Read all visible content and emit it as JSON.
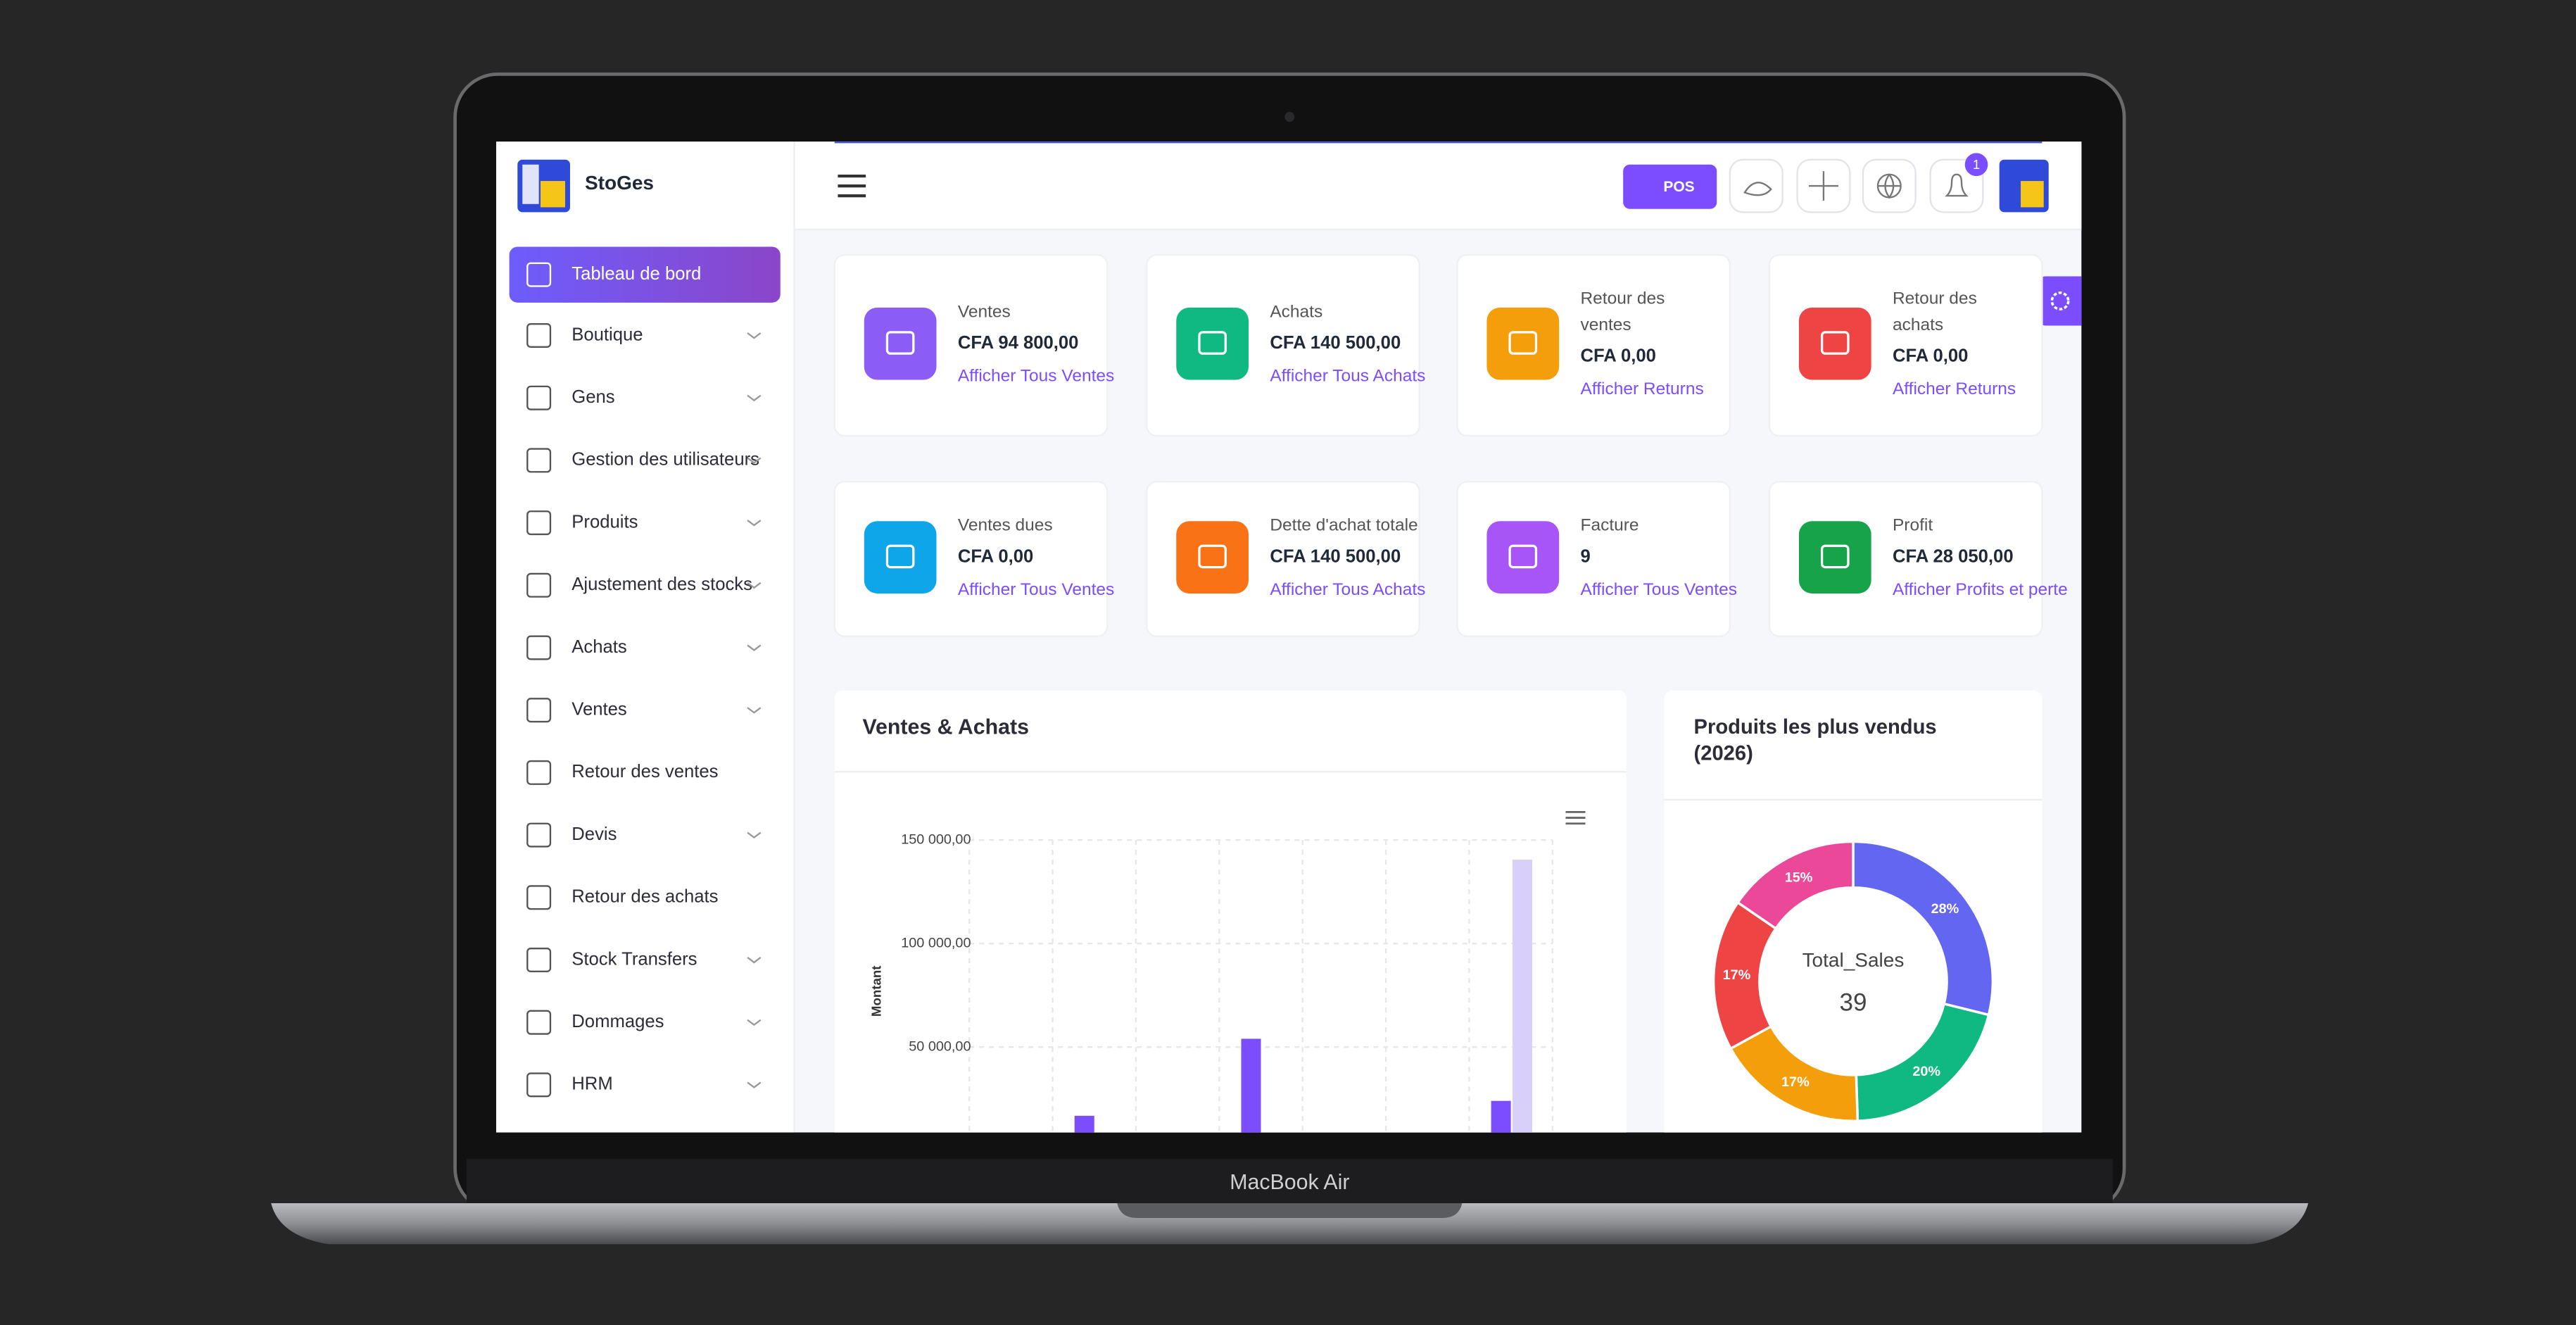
{
  "device_label": "MacBook Air",
  "sidebar": {
    "brand": "StoGes",
    "items": [
      {
        "label": "Tableau de bord",
        "active": true
      },
      {
        "label": "Boutique",
        "submenu": true
      },
      {
        "label": "Gens",
        "submenu": true
      },
      {
        "label": "Gestion des utilisateurs",
        "submenu": true
      },
      {
        "label": "Produits",
        "submenu": true
      },
      {
        "label": "Ajustement des stocks",
        "submenu": true
      },
      {
        "label": "Achats",
        "submenu": true
      },
      {
        "label": "Ventes",
        "submenu": true
      },
      {
        "label": "Retour des ventes"
      },
      {
        "label": "Devis",
        "submenu": true
      },
      {
        "label": "Retour des achats"
      },
      {
        "label": "Stock Transfers",
        "submenu": true
      },
      {
        "label": "Dommages",
        "submenu": true
      },
      {
        "label": "HRM",
        "submenu": true
      }
    ]
  },
  "header": {
    "pos_button": "POS",
    "notification_count": 1
  },
  "cards": [
    {
      "label": [
        "Ventes"
      ],
      "value": "CFA 94 800,00",
      "link": "Afficher Tous Ventes",
      "color": "#8b5cf6"
    },
    {
      "label": [
        "Achats"
      ],
      "value": "CFA 140 500,00",
      "link": "Afficher Tous Achats",
      "color": "#10b981"
    },
    {
      "label": [
        "Retour des",
        "ventes"
      ],
      "value": "CFA 0,00",
      "link": "Afficher Returns",
      "color": "#f59e0b"
    },
    {
      "label": [
        "Retour des",
        "achats"
      ],
      "value": "CFA 0,00",
      "link": "Afficher Returns",
      "color": "#ef4444"
    },
    {
      "label": [
        "Ventes dues"
      ],
      "value": "CFA 0,00",
      "link": "Afficher Tous Ventes",
      "color": "#0ea5e9"
    },
    {
      "label": [
        "Dette d'achat totale"
      ],
      "value": "CFA 140 500,00",
      "link": "Afficher Tous Achats",
      "color": "#f97316"
    },
    {
      "label": [
        "Facture"
      ],
      "value": 9,
      "link": "Afficher Tous Ventes",
      "color": "#a855f7"
    },
    {
      "label": [
        "Profit"
      ],
      "value": "CFA 28 050,00",
      "link": "Afficher Profits et perte",
      "color": "#16a34a"
    }
  ],
  "sales_chart": {
    "type": "bar",
    "title": "Ventes & Achats",
    "y_label": "Montant",
    "ylim": [
      0,
      150000
    ],
    "yticks": [
      {
        "value": 50000,
        "label": "50 000,00"
      },
      {
        "value": 100000,
        "label": "100 000,00"
      },
      {
        "value": 150000,
        "label": "150 000,00"
      }
    ],
    "grid": true,
    "categories": [
      null,
      null,
      null,
      null,
      null,
      null,
      null
    ],
    "series": [
      {
        "color": "#7c4dff",
        "values": [
          0,
          16800,
          0,
          54000,
          0,
          0,
          24000
        ]
      },
      {
        "color": "#d8d0fb",
        "values": [
          0,
          0,
          0,
          0,
          0,
          0,
          140500
        ]
      }
    ]
  },
  "top_products": {
    "type": "pie",
    "title": [
      "Produits les plus vendus",
      "(2026)"
    ],
    "center_label": "Total_Sales",
    "center_value": 39,
    "values": [
      28,
      20,
      17,
      17,
      15
    ],
    "value_labels": [
      "28%",
      "20%",
      "17%",
      "17%",
      "15%"
    ],
    "colors": [
      "#6366f1",
      "#10b981",
      "#f59e0b",
      "#ef4444",
      "#ec4899"
    ]
  }
}
